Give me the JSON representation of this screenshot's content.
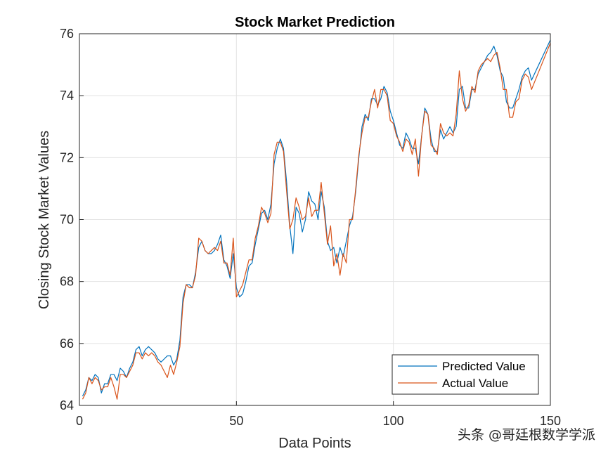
{
  "chart_data": {
    "type": "line",
    "title": "Stock Market Prediction",
    "xlabel": "Data Points",
    "ylabel": "Closing Stock Market Values",
    "xlim": [
      0,
      150
    ],
    "ylim": [
      64,
      76
    ],
    "xticks": [
      0,
      50,
      100,
      150
    ],
    "yticks": [
      64,
      66,
      68,
      70,
      72,
      74,
      76
    ],
    "grid": true,
    "legend_position": "bottom-right",
    "series": [
      {
        "name": "Predicted Value",
        "color": "#0072BD",
        "values": [
          64.3,
          64.5,
          64.9,
          64.8,
          65.0,
          64.9,
          64.4,
          64.7,
          64.7,
          65.0,
          65.0,
          64.8,
          65.2,
          65.1,
          64.9,
          65.2,
          65.4,
          65.8,
          65.9,
          65.6,
          65.8,
          65.9,
          65.8,
          65.7,
          65.5,
          65.4,
          65.5,
          65.6,
          65.6,
          65.3,
          65.5,
          66.1,
          67.5,
          67.9,
          67.9,
          67.8,
          68.3,
          69.1,
          69.3,
          69.0,
          68.9,
          68.9,
          69.0,
          69.2,
          69.5,
          68.7,
          68.5,
          68.1,
          68.9,
          67.8,
          67.5,
          67.6,
          68.0,
          68.5,
          68.6,
          69.2,
          69.7,
          70.2,
          70.3,
          70.0,
          70.5,
          71.8,
          72.3,
          72.6,
          72.3,
          71.2,
          69.8,
          68.9,
          70.4,
          70.2,
          69.6,
          70.0,
          70.9,
          70.6,
          70.5,
          70.0,
          70.9,
          70.4,
          69.3,
          69.0,
          69.1,
          68.6,
          69.1,
          68.8,
          69.3,
          69.8,
          70.1,
          70.9,
          72.0,
          73.0,
          73.4,
          73.2,
          73.9,
          73.9,
          73.7,
          73.9,
          74.3,
          74.1,
          73.5,
          73.2,
          72.8,
          72.4,
          72.3,
          72.8,
          72.6,
          72.3,
          72.3,
          71.8,
          72.7,
          73.6,
          73.4,
          72.6,
          72.2,
          72.2,
          72.9,
          72.6,
          72.8,
          73.0,
          72.8,
          73.0,
          74.2,
          74.3,
          73.6,
          73.6,
          74.2,
          74.2,
          74.7,
          74.9,
          75.1,
          75.3,
          75.4,
          75.6,
          75.3,
          74.8,
          74.6,
          73.8,
          73.6,
          73.6,
          73.9,
          74.2,
          74.6,
          74.8,
          74.9,
          74.5,
          75.8
        ],
        "x": [
          1,
          2,
          3,
          4,
          5,
          6,
          7,
          8,
          9,
          10,
          11,
          12,
          13,
          14,
          15,
          16,
          17,
          18,
          19,
          20,
          21,
          22,
          23,
          24,
          25,
          26,
          27,
          28,
          29,
          30,
          31,
          32,
          33,
          34,
          35,
          36,
          37,
          38,
          39,
          40,
          41,
          42,
          43,
          44,
          45,
          46,
          47,
          48,
          49,
          50,
          51,
          52,
          53,
          54,
          55,
          56,
          57,
          58,
          59,
          60,
          61,
          62,
          63,
          64,
          65,
          66,
          67,
          68,
          69,
          70,
          71,
          72,
          73,
          74,
          75,
          76,
          77,
          78,
          79,
          80,
          81,
          82,
          83,
          84,
          85,
          86,
          87,
          88,
          89,
          90,
          91,
          92,
          93,
          94,
          95,
          96,
          97,
          98,
          99,
          100,
          101,
          102,
          103,
          104,
          105,
          106,
          107,
          108,
          109,
          110,
          111,
          112,
          113,
          114,
          115,
          116,
          117,
          118,
          119,
          120,
          121,
          122,
          123,
          124,
          125,
          126,
          127,
          128,
          129,
          130,
          131,
          132,
          133,
          134,
          135,
          136,
          137,
          138,
          139,
          140,
          141,
          142,
          143,
          144,
          150
        ]
      },
      {
        "name": "Actual Value",
        "color": "#D95319",
        "values": [
          64.2,
          64.4,
          64.9,
          64.7,
          64.9,
          64.8,
          64.5,
          64.6,
          64.6,
          64.9,
          64.6,
          64.2,
          65.0,
          65.0,
          64.9,
          65.1,
          65.3,
          65.7,
          65.7,
          65.5,
          65.7,
          65.6,
          65.7,
          65.6,
          65.4,
          65.3,
          65.1,
          64.9,
          65.3,
          65.0,
          65.4,
          65.9,
          67.3,
          67.9,
          67.8,
          67.8,
          68.2,
          69.4,
          69.3,
          69.0,
          68.9,
          69.0,
          69.1,
          69.0,
          69.3,
          68.6,
          68.6,
          68.2,
          69.4,
          67.5,
          67.7,
          67.9,
          68.3,
          68.7,
          68.7,
          69.4,
          69.8,
          70.4,
          70.2,
          69.9,
          70.2,
          72.1,
          72.5,
          72.5,
          72.2,
          70.9,
          69.7,
          70.0,
          70.7,
          70.4,
          70.0,
          70.1,
          70.7,
          70.1,
          70.3,
          70.3,
          71.2,
          70.2,
          69.2,
          69.8,
          68.5,
          68.9,
          68.2,
          68.9,
          68.6,
          70.0,
          70.0,
          71.0,
          72.1,
          72.8,
          73.3,
          73.3,
          73.8,
          74.2,
          73.6,
          74.2,
          74.2,
          74.0,
          73.2,
          73.1,
          72.7,
          72.5,
          72.2,
          72.6,
          72.5,
          72.1,
          72.6,
          71.4,
          72.7,
          73.5,
          73.4,
          72.4,
          72.3,
          72.1,
          73.1,
          72.8,
          72.7,
          72.8,
          72.7,
          73.4,
          74.8,
          73.9,
          73.5,
          73.7,
          74.3,
          74.1,
          74.8,
          75.0,
          75.1,
          75.2,
          75.1,
          75.3,
          75.4,
          74.9,
          74.2,
          74.2,
          73.3,
          73.3,
          73.8,
          73.9,
          74.5,
          74.7,
          74.6,
          74.2,
          75.7
        ],
        "x": [
          1,
          2,
          3,
          4,
          5,
          6,
          7,
          8,
          9,
          10,
          11,
          12,
          13,
          14,
          15,
          16,
          17,
          18,
          19,
          20,
          21,
          22,
          23,
          24,
          25,
          26,
          27,
          28,
          29,
          30,
          31,
          32,
          33,
          34,
          35,
          36,
          37,
          38,
          39,
          40,
          41,
          42,
          43,
          44,
          45,
          46,
          47,
          48,
          49,
          50,
          51,
          52,
          53,
          54,
          55,
          56,
          57,
          58,
          59,
          60,
          61,
          62,
          63,
          64,
          65,
          66,
          67,
          68,
          69,
          70,
          71,
          72,
          73,
          74,
          75,
          76,
          77,
          78,
          79,
          80,
          81,
          82,
          83,
          84,
          85,
          86,
          87,
          88,
          89,
          90,
          91,
          92,
          93,
          94,
          95,
          96,
          97,
          98,
          99,
          100,
          101,
          102,
          103,
          104,
          105,
          106,
          107,
          108,
          109,
          110,
          111,
          112,
          113,
          114,
          115,
          116,
          117,
          118,
          119,
          120,
          121,
          122,
          123,
          124,
          125,
          126,
          127,
          128,
          129,
          130,
          131,
          132,
          133,
          134,
          135,
          136,
          137,
          138,
          139,
          140,
          141,
          142,
          143,
          144,
          150
        ]
      }
    ]
  },
  "watermark": "头条 @哥廷根数学学派"
}
